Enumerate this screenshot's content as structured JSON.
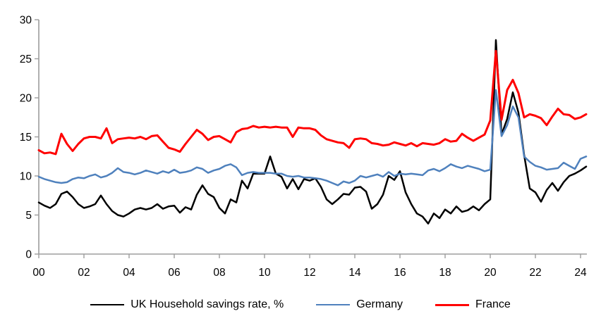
{
  "chart_data": {
    "type": "line",
    "title": "",
    "xlabel": "",
    "ylabel": "",
    "ylim": [
      0,
      30
    ],
    "y_ticks": [
      0,
      5,
      10,
      15,
      20,
      25,
      30
    ],
    "x_tick_labels": [
      "00",
      "02",
      "04",
      "06",
      "08",
      "10",
      "12",
      "14",
      "16",
      "18",
      "20",
      "22",
      "24"
    ],
    "x_tick_years": [
      2000,
      2002,
      2004,
      2006,
      2008,
      2010,
      2012,
      2014,
      2016,
      2018,
      2020,
      2022,
      2024
    ],
    "x_start": "2000Q1",
    "x_end": "2024Q2",
    "x_frequency": "quarterly",
    "grid": false,
    "legend_position": "bottom",
    "series": [
      {
        "name": "UK Household savings rate, %",
        "color": "#000000",
        "width": 2.5,
        "values": [
          6.6,
          6.2,
          5.9,
          6.4,
          7.7,
          8.0,
          7.3,
          6.4,
          5.9,
          6.1,
          6.4,
          7.5,
          6.4,
          5.5,
          5.0,
          4.8,
          5.2,
          5.7,
          5.9,
          5.7,
          5.9,
          6.4,
          5.8,
          6.1,
          6.2,
          5.3,
          6.0,
          5.7,
          7.6,
          8.8,
          7.7,
          7.3,
          5.9,
          5.2,
          7.0,
          6.6,
          9.4,
          8.4,
          10.3,
          10.3,
          10.3,
          12.5,
          10.3,
          9.9,
          8.4,
          9.6,
          8.3,
          9.6,
          9.4,
          9.7,
          8.6,
          7.0,
          6.4,
          7.0,
          7.7,
          7.6,
          8.5,
          8.6,
          8.0,
          5.8,
          6.4,
          7.6,
          10.0,
          9.5,
          10.6,
          7.9,
          6.4,
          5.2,
          4.8,
          3.9,
          5.2,
          4.6,
          5.7,
          5.2,
          6.1,
          5.4,
          5.6,
          6.1,
          5.6,
          6.4,
          7.0,
          27.4,
          15.3,
          17.3,
          20.7,
          18.1,
          12.7,
          8.4,
          7.9,
          6.7,
          8.2,
          9.1,
          8.1,
          9.2,
          10.0,
          10.3,
          10.7,
          11.2
        ]
      },
      {
        "name": "Germany",
        "color": "#4F81BD",
        "width": 2.5,
        "values": [
          9.9,
          9.6,
          9.4,
          9.2,
          9.1,
          9.2,
          9.6,
          9.8,
          9.7,
          10.0,
          10.2,
          9.8,
          10.0,
          10.4,
          11.0,
          10.5,
          10.4,
          10.2,
          10.4,
          10.7,
          10.5,
          10.3,
          10.6,
          10.4,
          10.8,
          10.4,
          10.5,
          10.7,
          11.1,
          10.9,
          10.4,
          10.7,
          10.9,
          11.3,
          11.5,
          11.1,
          10.1,
          10.4,
          10.5,
          10.4,
          10.4,
          10.4,
          10.3,
          10.3,
          10.0,
          9.9,
          10.0,
          9.8,
          9.8,
          9.7,
          9.6,
          9.4,
          9.1,
          8.8,
          9.3,
          9.1,
          9.4,
          10.0,
          9.8,
          10.0,
          10.2,
          9.9,
          10.5,
          10.0,
          10.3,
          10.2,
          10.3,
          10.2,
          10.1,
          10.7,
          10.9,
          10.6,
          11.0,
          11.5,
          11.2,
          11.0,
          11.3,
          11.1,
          10.9,
          10.6,
          10.8,
          21.0,
          15.1,
          16.5,
          18.9,
          17.5,
          12.5,
          11.8,
          11.3,
          11.1,
          10.8,
          10.9,
          11.0,
          11.7,
          11.3,
          10.9,
          12.2,
          12.5
        ]
      },
      {
        "name": "France",
        "color": "#FF0000",
        "width": 3,
        "values": [
          13.3,
          12.9,
          13.0,
          12.8,
          15.4,
          14.1,
          13.2,
          14.1,
          14.8,
          15.0,
          15.0,
          14.8,
          16.1,
          14.2,
          14.7,
          14.8,
          14.9,
          14.8,
          15.0,
          14.7,
          15.1,
          15.2,
          14.4,
          13.6,
          13.4,
          13.1,
          14.1,
          15.0,
          15.9,
          15.4,
          14.6,
          15.0,
          15.1,
          14.7,
          14.3,
          15.6,
          16.0,
          16.1,
          16.4,
          16.2,
          16.3,
          16.2,
          16.3,
          16.2,
          16.2,
          15.0,
          16.2,
          16.1,
          16.1,
          15.9,
          15.2,
          14.7,
          14.5,
          14.3,
          14.2,
          13.6,
          14.7,
          14.8,
          14.7,
          14.2,
          14.1,
          13.9,
          14.0,
          14.3,
          14.1,
          13.9,
          14.2,
          13.8,
          14.2,
          14.1,
          14.0,
          14.2,
          14.7,
          14.4,
          14.5,
          15.4,
          14.9,
          14.5,
          14.9,
          15.3,
          17.1,
          26.0,
          17.2,
          21.0,
          22.3,
          20.6,
          17.5,
          17.9,
          17.7,
          17.4,
          16.5,
          17.6,
          18.6,
          17.9,
          17.8,
          17.3,
          17.5,
          17.9
        ]
      }
    ]
  },
  "legend": {
    "uk_label": "UK Household savings rate, %",
    "germany_label": "Germany",
    "france_label": "France"
  }
}
